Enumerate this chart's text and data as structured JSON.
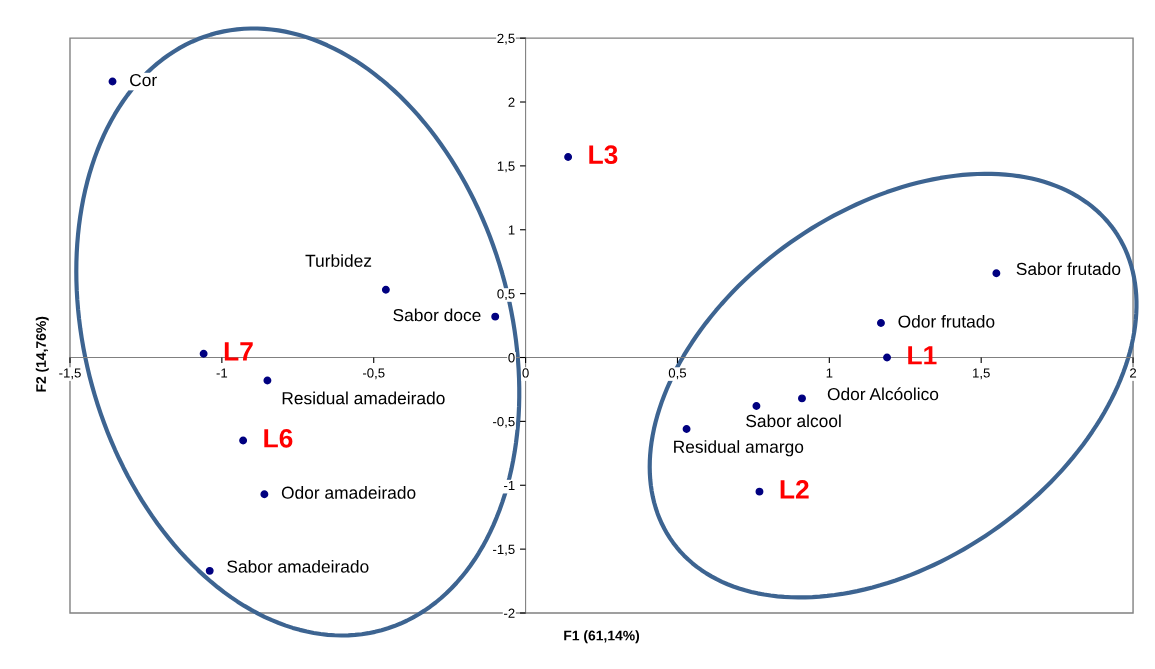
{
  "chart_data": {
    "type": "scatter",
    "xlabel": "F1 (61,14%)",
    "ylabel": "F2 (14,76%)",
    "xlim": [
      -1.5,
      2
    ],
    "ylim": [
      -2,
      2.5
    ],
    "xticks": [
      {
        "value": -1.5,
        "label": "-1,5"
      },
      -1,
      {
        "value": -0.5,
        "label": "-0,5"
      },
      0,
      {
        "value": 0.5,
        "label": "0,5"
      },
      1,
      {
        "value": 1.5,
        "label": "1,5"
      },
      2
    ],
    "yticks": [
      -2,
      {
        "value": -1.5,
        "label": "-1,5"
      },
      -1,
      {
        "value": -0.5,
        "label": "-0,5"
      },
      0,
      {
        "value": 0.5,
        "label": "0,5"
      },
      1,
      {
        "value": 1.5,
        "label": "1,5"
      },
      2,
      {
        "value": 2.5,
        "label": "2,5"
      }
    ],
    "grid": false,
    "legend": false,
    "marker": "circle",
    "series": [
      {
        "color": "#000080",
        "x": [
          -1.36,
          -0.46,
          -0.1,
          -0.85,
          -0.86,
          -1.04,
          1.55,
          1.17,
          0.91,
          0.76,
          0.53
        ],
        "values": [
          2.16,
          0.53,
          0.32,
          -0.18,
          -1.07,
          -1.67,
          0.66,
          0.27,
          -0.32,
          -0.38,
          -0.56
        ],
        "value_labels": [
          "Cor",
          "Turbidez",
          "Sabor doce",
          "Residual amadeirado",
          "Odor amadeirado",
          "Sabor amadeirado",
          "Sabor frutado",
          "Odor frutado",
          "Odor Alcóolico",
          "Sabor alcool",
          "Residual amargo"
        ]
      },
      {
        "color": "#000080",
        "x": [
          0.14,
          -1.06,
          -0.93,
          1.19,
          0.77
        ],
        "values": [
          1.57,
          0.03,
          -0.65,
          0.0,
          -1.05
        ],
        "value_labels": [
          "L3",
          "L7",
          "L6",
          "L1",
          "L2"
        ]
      }
    ]
  }
}
